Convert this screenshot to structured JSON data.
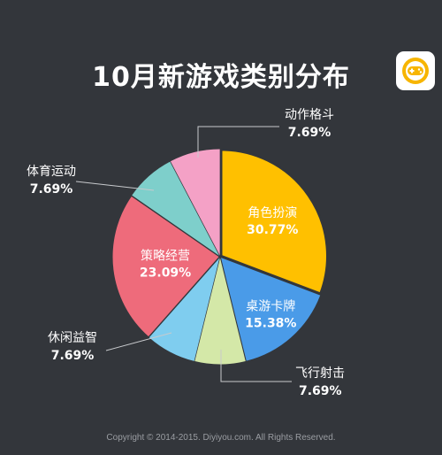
{
  "header": {
    "title": "10月新游戏类别分布"
  },
  "footer": {
    "copyright": "Copyright © 2014-2015. Diyiyou.com. All Rights Reserved."
  },
  "logo": {
    "icon": "gamepad-icon",
    "accent_color": "#f7b500"
  },
  "chart_data": {
    "type": "pie",
    "title": "10月新游戏类别分布",
    "slices": [
      {
        "label": "角色扮演",
        "value": 30.77,
        "value_label": "30.77%",
        "color": "#ffc000"
      },
      {
        "label": "桌游卡牌",
        "value": 15.38,
        "value_label": "15.38%",
        "color": "#4a9be8"
      },
      {
        "label": "飞行射击",
        "value": 7.69,
        "value_label": "7.69%",
        "color": "#d4e8a8"
      },
      {
        "label": "休闲益智",
        "value": 7.69,
        "value_label": "7.69%",
        "color": "#7fcdef"
      },
      {
        "label": "策略经营",
        "value": 23.09,
        "value_label": "23.09%",
        "color": "#ee6b7b"
      },
      {
        "label": "体育运动",
        "value": 7.69,
        "value_label": "7.69%",
        "color": "#7ecfcb"
      },
      {
        "label": "动作格斗",
        "value": 7.69,
        "value_label": "7.69%",
        "color": "#f4a1c6"
      }
    ]
  }
}
